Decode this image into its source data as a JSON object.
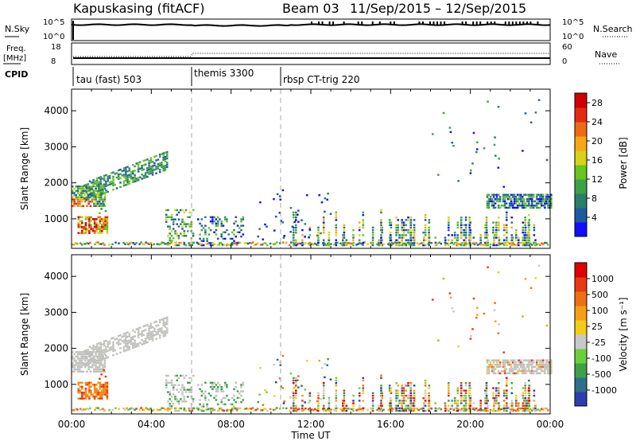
{
  "header": {
    "title": "Kapuskasing (fitACF)",
    "beam": "Beam 03",
    "date_range": "11/Sep/2015 – 12/Sep/2015"
  },
  "nsky_panel": {
    "left_label": "N.Sky",
    "right_label": "N.Search",
    "ticks_left": [
      "10^5",
      "10^0"
    ],
    "ticks_right": [
      "10^5",
      "10^0"
    ]
  },
  "freq_panel": {
    "left_label_line1": "Freq.",
    "left_label_line2": "[MHz]",
    "right_label": "Nave",
    "ticks_left": [
      "18",
      "8"
    ],
    "ticks_right": [
      "60",
      "0"
    ]
  },
  "cpid_panel": {
    "label": "CPID",
    "segments": [
      {
        "start_hour": 0,
        "label": "tau (fast) 503"
      },
      {
        "start_hour": 6,
        "label": "themis 3300"
      },
      {
        "start_hour": 10.5,
        "label": "rbsp CT-trig 220"
      }
    ]
  },
  "chart_data": [
    {
      "type": "heatmap",
      "name": "power",
      "ylabel": "Slant Range [km]",
      "xlabel": "",
      "xlim_hours": [
        0,
        24
      ],
      "ylim": [
        180,
        4600
      ],
      "x_tick_labels": [
        "00:00",
        "04:00",
        "08:00",
        "12:00",
        "16:00",
        "20:00",
        "00:00"
      ],
      "y_ticks": [
        1000,
        2000,
        3000,
        4000
      ],
      "colorbar": {
        "label": "Power [dB]",
        "ticks": [
          "4",
          "8",
          "12",
          "16",
          "20",
          "24",
          "28"
        ],
        "range": [
          0,
          30
        ],
        "colors": [
          "#1010ff",
          "#1e5aa0",
          "#2d7d6a",
          "#3fa04a",
          "#66c51f",
          "#d8d21a",
          "#f5a814",
          "#ef6a14",
          "#e52a12",
          "#d00000"
        ]
      }
    },
    {
      "type": "heatmap",
      "name": "velocity",
      "ylabel": "Slant Range [km]",
      "xlabel": "Time UT",
      "xlim_hours": [
        0,
        24
      ],
      "ylim": [
        180,
        4600
      ],
      "x_tick_labels": [
        "00:00",
        "04:00",
        "08:00",
        "12:00",
        "16:00",
        "20:00",
        "00:00"
      ],
      "y_ticks": [
        1000,
        2000,
        3000,
        4000
      ],
      "colorbar": {
        "label": "Velocity [m s⁻¹]",
        "ticks": [
          "1000",
          "500",
          "100",
          "25",
          "-25",
          "-100",
          "-500",
          "-1000"
        ],
        "colors": [
          "#2b3fae",
          "#2e6f8c",
          "#3fa04a",
          "#6cd03a",
          "#c8c8c8",
          "#f4cc1a",
          "#f5a014",
          "#ef7014",
          "#e83a12",
          "#e00000"
        ]
      }
    }
  ]
}
